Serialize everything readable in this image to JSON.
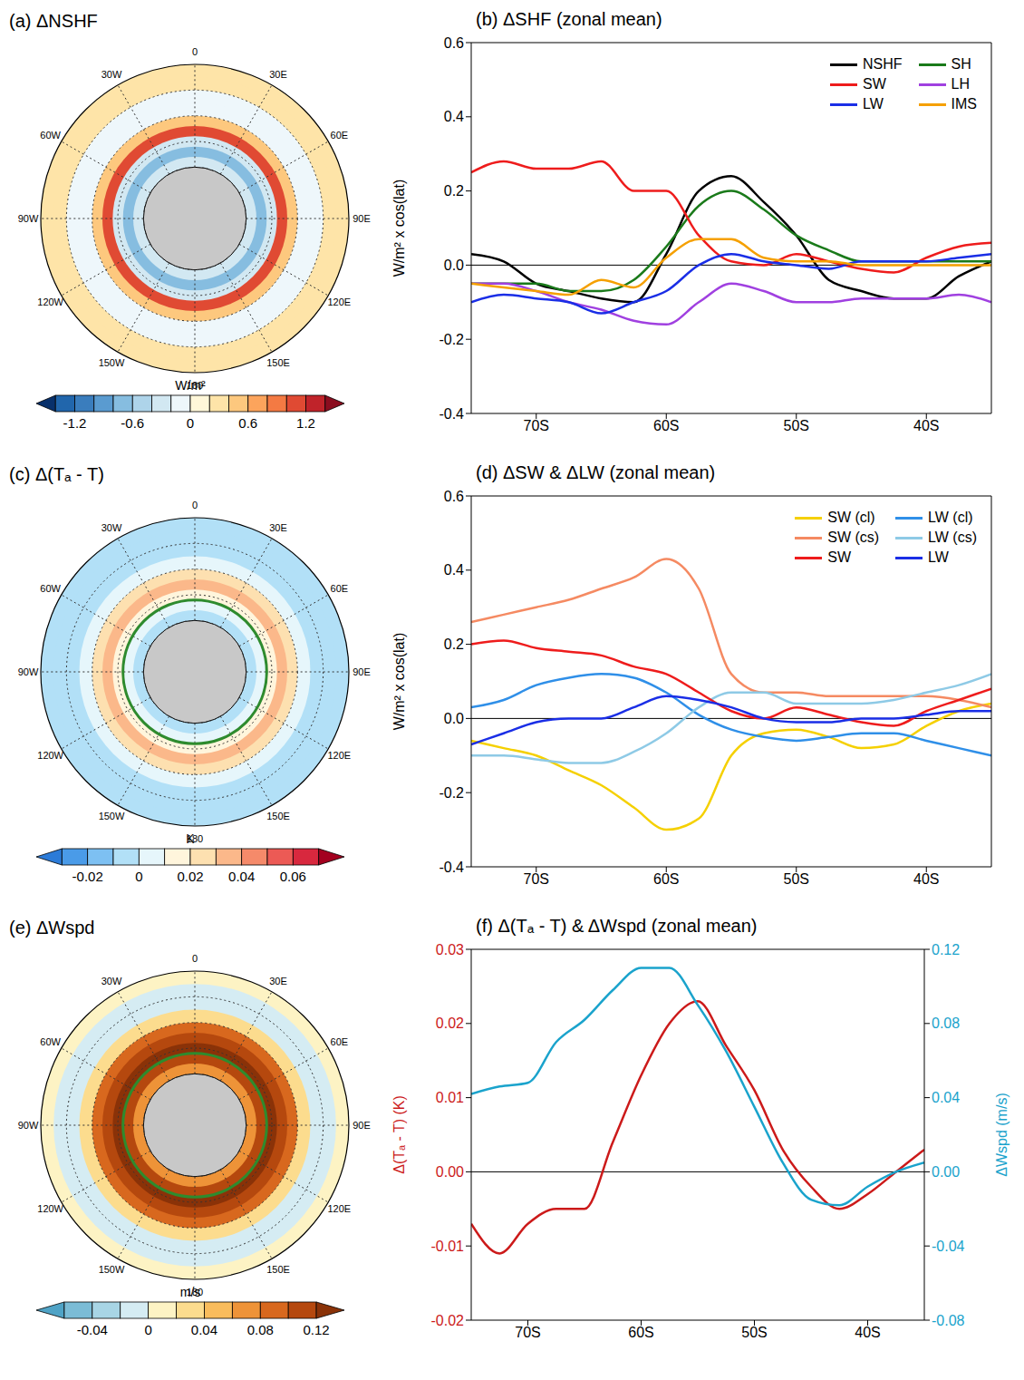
{
  "chart_data": [
    {
      "type": "map",
      "title": "(a) ΔNSHF",
      "band_edges": [
        -70,
        -66,
        -62,
        -58,
        -54,
        -50,
        -45,
        -40,
        -35,
        -30
      ],
      "band_values": [
        -0.4,
        -0.8,
        -0.3,
        1.0,
        0.4,
        -0.2,
        -0.1,
        0.2,
        0.2
      ],
      "lat_circles": [
        -40,
        -50,
        -60,
        -70
      ],
      "lon_labels": [
        {
          "value": 0,
          "label": "0"
        },
        {
          "value": 30,
          "label": "30E"
        },
        {
          "value": 60,
          "label": "60E"
        },
        {
          "value": 90,
          "label": "90E"
        },
        {
          "value": 120,
          "label": "120E"
        },
        {
          "value": 150,
          "label": "150E"
        },
        {
          "value": 180,
          "label": "180"
        },
        {
          "value": -150,
          "label": "150W"
        },
        {
          "value": -120,
          "label": "120W"
        },
        {
          "value": -90,
          "label": "90W"
        },
        {
          "value": -60,
          "label": "60W"
        },
        {
          "value": -30,
          "label": "30W"
        }
      ],
      "colorbar": {
        "label": "W/m²",
        "levels": [
          -1.4,
          -1.2,
          -1.0,
          -0.8,
          -0.6,
          -0.4,
          -0.2,
          0,
          0.2,
          0.4,
          0.6,
          0.8,
          1.0,
          1.2,
          1.4
        ],
        "colors": [
          "#08306b",
          "#2166ac",
          "#3a7dbd",
          "#5a9bd0",
          "#86bde0",
          "#aed4ea",
          "#d2e8f2",
          "#eef7fb",
          "#fff7d9",
          "#fee4a8",
          "#fdc87e",
          "#fca45c",
          "#f47a43",
          "#e04a33",
          "#c0232a",
          "#8b0d1f"
        ],
        "ticks": [
          -1.2,
          -0.6,
          0,
          0.6,
          1.2
        ]
      }
    },
    {
      "type": "line",
      "title": "(b) ΔSHF (zonal mean)",
      "ylabel": "W/m² x cos(lat)",
      "x": [
        -75,
        -72.5,
        -70,
        -67.5,
        -65,
        -62.5,
        -60,
        -57.5,
        -55,
        -52.5,
        -50,
        -47.5,
        -45,
        -42.5,
        -40,
        -37.5,
        -35
      ],
      "xlim": [
        -75,
        -35
      ],
      "xticks": [
        {
          "value": -70,
          "label": "70S"
        },
        {
          "value": -60,
          "label": "60S"
        },
        {
          "value": -50,
          "label": "50S"
        },
        {
          "value": -40,
          "label": "40S"
        }
      ],
      "ylim": [
        -0.4,
        0.6
      ],
      "yticks": [
        -0.4,
        -0.2,
        {
          "value": 0,
          "label": "0.0"
        },
        0.2,
        0.4,
        0.6
      ],
      "hline": 0,
      "legend": "upper right",
      "series": [
        {
          "name": "NSHF",
          "color": "#000000",
          "values": [
            0.03,
            0.01,
            -0.05,
            -0.07,
            -0.09,
            -0.1,
            0.03,
            0.2,
            0.24,
            0.17,
            0.08,
            -0.04,
            -0.07,
            -0.09,
            -0.09,
            -0.03,
            0.01
          ]
        },
        {
          "name": "SH",
          "color": "#1a7a1a",
          "values": [
            -0.05,
            -0.05,
            -0.05,
            -0.07,
            -0.07,
            -0.04,
            0.05,
            0.16,
            0.2,
            0.15,
            0.08,
            0.04,
            0.01,
            0.01,
            0.01,
            0.01,
            0.01
          ]
        },
        {
          "name": "SW",
          "color": "#ee1c1c",
          "values": [
            0.25,
            0.28,
            0.26,
            0.26,
            0.28,
            0.2,
            0.2,
            0.08,
            0.01,
            0.0,
            0.03,
            0.01,
            -0.01,
            -0.02,
            0.02,
            0.05,
            0.06
          ]
        },
        {
          "name": "LH",
          "color": "#a040e0",
          "values": [
            -0.05,
            -0.05,
            -0.07,
            -0.1,
            -0.12,
            -0.15,
            -0.16,
            -0.1,
            -0.05,
            -0.07,
            -0.1,
            -0.1,
            -0.09,
            -0.09,
            -0.09,
            -0.08,
            -0.1
          ]
        },
        {
          "name": "LW",
          "color": "#1a2ee6",
          "values": [
            -0.1,
            -0.08,
            -0.09,
            -0.1,
            -0.13,
            -0.1,
            -0.07,
            0.0,
            0.03,
            0.01,
            0.0,
            -0.01,
            0.01,
            0.01,
            0.01,
            0.02,
            0.03
          ]
        },
        {
          "name": "IMS",
          "color": "#f5a000",
          "values": [
            -0.05,
            -0.06,
            -0.07,
            -0.08,
            -0.04,
            -0.06,
            0.02,
            0.07,
            0.07,
            0.02,
            0.01,
            0.01,
            0.0,
            0.0,
            0.0,
            0.0,
            0.0
          ]
        }
      ]
    },
    {
      "type": "map",
      "title": "(c) Δ(Tₐ - T)",
      "band_edges": [
        -70,
        -66,
        -62,
        -58,
        -54,
        -50,
        -45,
        -40,
        -35,
        -30
      ],
      "band_values": [
        -0.005,
        0.0,
        0.015,
        0.03,
        0.02,
        0.005,
        -0.005,
        -0.005,
        -0.005
      ],
      "lat_circles": [
        -40,
        -50,
        -60,
        -70
      ],
      "lon_labels": [
        {
          "value": 0,
          "label": "0"
        },
        {
          "value": 30,
          "label": "30E"
        },
        {
          "value": 60,
          "label": "60E"
        },
        {
          "value": 90,
          "label": "90E"
        },
        {
          "value": 120,
          "label": "120E"
        },
        {
          "value": 150,
          "label": "150E"
        },
        {
          "value": 180,
          "label": "180"
        },
        {
          "value": -150,
          "label": "150W"
        },
        {
          "value": -120,
          "label": "120W"
        },
        {
          "value": -90,
          "label": "90W"
        },
        {
          "value": -60,
          "label": "60W"
        },
        {
          "value": -30,
          "label": "30W"
        }
      ],
      "contour": {
        "lat": -62,
        "color": "#2e8b2e"
      },
      "colorbar": {
        "label": "K",
        "levels": [
          -0.03,
          -0.02,
          -0.01,
          0,
          0.01,
          0.02,
          0.03,
          0.04,
          0.05,
          0.06,
          0.07
        ],
        "colors": [
          "#2b7bd8",
          "#4a9be8",
          "#7dc0f2",
          "#b2e0f7",
          "#e6f6fb",
          "#fff5dc",
          "#fde0b0",
          "#fbb88a",
          "#f58a6a",
          "#ec5a55",
          "#d8283e",
          "#a3001f"
        ],
        "ticks": [
          -0.02,
          0,
          0.02,
          0.04,
          0.06
        ]
      }
    },
    {
      "type": "line",
      "title": "(d) ΔSW & ΔLW (zonal mean)",
      "ylabel": "W/m² x cos(lat)",
      "x": [
        -75,
        -72.5,
        -70,
        -67.5,
        -65,
        -62.5,
        -60,
        -57.5,
        -55,
        -52.5,
        -50,
        -47.5,
        -45,
        -42.5,
        -40,
        -37.5,
        -35
      ],
      "xlim": [
        -75,
        -35
      ],
      "xticks": [
        {
          "value": -70,
          "label": "70S"
        },
        {
          "value": -60,
          "label": "60S"
        },
        {
          "value": -50,
          "label": "50S"
        },
        {
          "value": -40,
          "label": "40S"
        }
      ],
      "ylim": [
        -0.4,
        0.6
      ],
      "yticks": [
        -0.4,
        -0.2,
        {
          "value": 0,
          "label": "0.0"
        },
        0.2,
        0.4,
        0.6
      ],
      "hline": 0,
      "legend": "upper right",
      "series": [
        {
          "name": "SW (cl)",
          "color": "#f5d000",
          "values": [
            -0.06,
            -0.08,
            -0.1,
            -0.14,
            -0.18,
            -0.24,
            -0.3,
            -0.27,
            -0.1,
            -0.04,
            -0.03,
            -0.05,
            -0.08,
            -0.07,
            -0.02,
            0.02,
            0.04
          ]
        },
        {
          "name": "LW (cl)",
          "color": "#2f8fe8",
          "values": [
            0.03,
            0.05,
            0.09,
            0.11,
            0.12,
            0.11,
            0.07,
            0.01,
            -0.03,
            -0.05,
            -0.06,
            -0.05,
            -0.04,
            -0.04,
            -0.06,
            -0.08,
            -0.1
          ]
        },
        {
          "name": "SW (cs)",
          "color": "#f58a62",
          "values": [
            0.26,
            0.28,
            0.3,
            0.32,
            0.35,
            0.38,
            0.43,
            0.35,
            0.12,
            0.07,
            0.07,
            0.06,
            0.06,
            0.06,
            0.06,
            0.05,
            0.03
          ]
        },
        {
          "name": "LW (cs)",
          "color": "#8ecae6",
          "values": [
            -0.1,
            -0.1,
            -0.11,
            -0.12,
            -0.12,
            -0.09,
            -0.04,
            0.03,
            0.07,
            0.07,
            0.04,
            0.04,
            0.04,
            0.05,
            0.07,
            0.09,
            0.12
          ]
        },
        {
          "name": "SW",
          "color": "#ee1c1c",
          "values": [
            0.2,
            0.21,
            0.19,
            0.18,
            0.17,
            0.14,
            0.12,
            0.07,
            0.02,
            0.0,
            0.03,
            0.01,
            -0.01,
            -0.02,
            0.02,
            0.05,
            0.08
          ]
        },
        {
          "name": "LW",
          "color": "#1a2ee6",
          "values": [
            -0.07,
            -0.04,
            -0.01,
            0.0,
            0.0,
            0.03,
            0.06,
            0.05,
            0.03,
            0.0,
            -0.01,
            -0.01,
            0.0,
            0.0,
            0.01,
            0.02,
            0.02
          ]
        }
      ]
    },
    {
      "type": "map",
      "title": "(e) ΔWspd",
      "band_edges": [
        -70,
        -66,
        -62,
        -58,
        -54,
        -50,
        -45,
        -40,
        -35,
        -30
      ],
      "band_values": [
        0.06,
        0.1,
        0.13,
        0.11,
        0.08,
        0.03,
        -0.01,
        -0.02,
        0.01
      ],
      "lat_circles": [
        -40,
        -50,
        -60,
        -70
      ],
      "lon_labels": [
        {
          "value": 0,
          "label": "0"
        },
        {
          "value": 30,
          "label": "30E"
        },
        {
          "value": 60,
          "label": "60E"
        },
        {
          "value": 90,
          "label": "90E"
        },
        {
          "value": 120,
          "label": "120E"
        },
        {
          "value": 150,
          "label": "150E"
        },
        {
          "value": 180,
          "label": "180"
        },
        {
          "value": -150,
          "label": "150W"
        },
        {
          "value": -120,
          "label": "120W"
        },
        {
          "value": -90,
          "label": "90W"
        },
        {
          "value": -60,
          "label": "60W"
        },
        {
          "value": -30,
          "label": "30W"
        }
      ],
      "contour": {
        "lat": -62,
        "color": "#2e8b2e"
      },
      "colorbar": {
        "label": "m/s",
        "levels": [
          -0.06,
          -0.04,
          -0.02,
          0,
          0.02,
          0.04,
          0.06,
          0.08,
          0.1,
          0.12
        ],
        "colors": [
          "#4fa3c6",
          "#7bbcd6",
          "#a8d5e5",
          "#d5ecf3",
          "#fdf3c4",
          "#fcdc8e",
          "#f9bc5c",
          "#ee9338",
          "#d8681e",
          "#b5480e",
          "#8a3208"
        ],
        "ticks": [
          -0.04,
          0,
          0.04,
          0.08,
          0.12
        ]
      }
    },
    {
      "type": "line",
      "title": "(f) Δ(Tₐ - T) & ΔWspd (zonal mean)",
      "ylabel": "Δ(Tₐ - T) (K)",
      "y2label": "ΔWspd (m/s)",
      "x": [
        -75,
        -72.5,
        -70,
        -67.5,
        -65,
        -62.5,
        -60,
        -57.5,
        -55,
        -52.5,
        -50,
        -47.5,
        -45,
        -42.5,
        -40,
        -37.5,
        -35
      ],
      "xlim": [
        -75,
        -35
      ],
      "xticks": [
        {
          "value": -70,
          "label": "70S"
        },
        {
          "value": -60,
          "label": "60S"
        },
        {
          "value": -50,
          "label": "50S"
        },
        {
          "value": -40,
          "label": "40S"
        }
      ],
      "ylim": [
        -0.02,
        0.03
      ],
      "yticks": [
        -0.02,
        -0.01,
        {
          "value": 0,
          "label": "0.00"
        },
        0.01,
        0.02,
        0.03
      ],
      "y2lim": [
        -0.08,
        0.12
      ],
      "y2ticks": [
        -0.08,
        -0.04,
        {
          "value": 0,
          "label": "0.00"
        },
        0.04,
        0.08,
        0.12
      ],
      "hline": 0,
      "series": [
        {
          "name": "Δ(Tₐ - T)",
          "color": "#cc1a1a",
          "values": [
            -0.007,
            -0.011,
            -0.007,
            -0.005,
            -0.005,
            0.004,
            0.013,
            0.02,
            0.023,
            0.017,
            0.011,
            0.003,
            -0.002,
            -0.005,
            -0.003,
            0.0,
            0.003
          ]
        },
        {
          "name": "ΔWspd",
          "color": "#1aa3cc",
          "axis": "y2",
          "values": [
            0.042,
            0.046,
            0.048,
            0.07,
            0.082,
            0.098,
            0.11,
            0.11,
            0.09,
            0.065,
            0.035,
            0.005,
            -0.015,
            -0.018,
            -0.008,
            0.0,
            0.005
          ]
        }
      ]
    }
  ]
}
